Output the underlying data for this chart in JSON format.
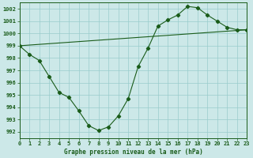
{
  "title": "Graphe pression niveau de la mer (hPa)",
  "bg_color": "#cce8e8",
  "grid_color": "#99cccc",
  "line_color": "#1a5c1a",
  "line1_x": [
    0,
    1,
    2,
    3,
    4,
    5,
    6,
    7,
    8,
    9,
    10,
    11,
    12,
    13,
    14,
    15,
    16,
    17,
    18,
    19,
    20,
    21,
    22,
    23
  ],
  "line1_y": [
    999.0,
    998.3,
    997.8,
    996.5,
    995.2,
    994.8,
    993.7,
    992.5,
    992.1,
    992.4,
    993.3,
    994.7,
    997.3,
    998.8,
    1000.6,
    1001.1,
    1001.5,
    1002.2,
    1002.1,
    1001.5,
    1001.0,
    1000.5,
    1000.3,
    1000.3
  ],
  "line2_x": [
    0,
    23
  ],
  "line2_y": [
    999.0,
    1000.3
  ],
  "xlim": [
    0,
    23
  ],
  "ylim": [
    991.5,
    1002.5
  ],
  "yticks": [
    992,
    993,
    994,
    995,
    996,
    997,
    998,
    999,
    1000,
    1001,
    1002
  ],
  "xticks": [
    0,
    1,
    2,
    3,
    4,
    5,
    6,
    7,
    8,
    9,
    10,
    11,
    12,
    13,
    14,
    15,
    16,
    17,
    18,
    19,
    20,
    21,
    22,
    23
  ],
  "xlabel_fontsize": 5.5,
  "tick_fontsize": 5.0
}
